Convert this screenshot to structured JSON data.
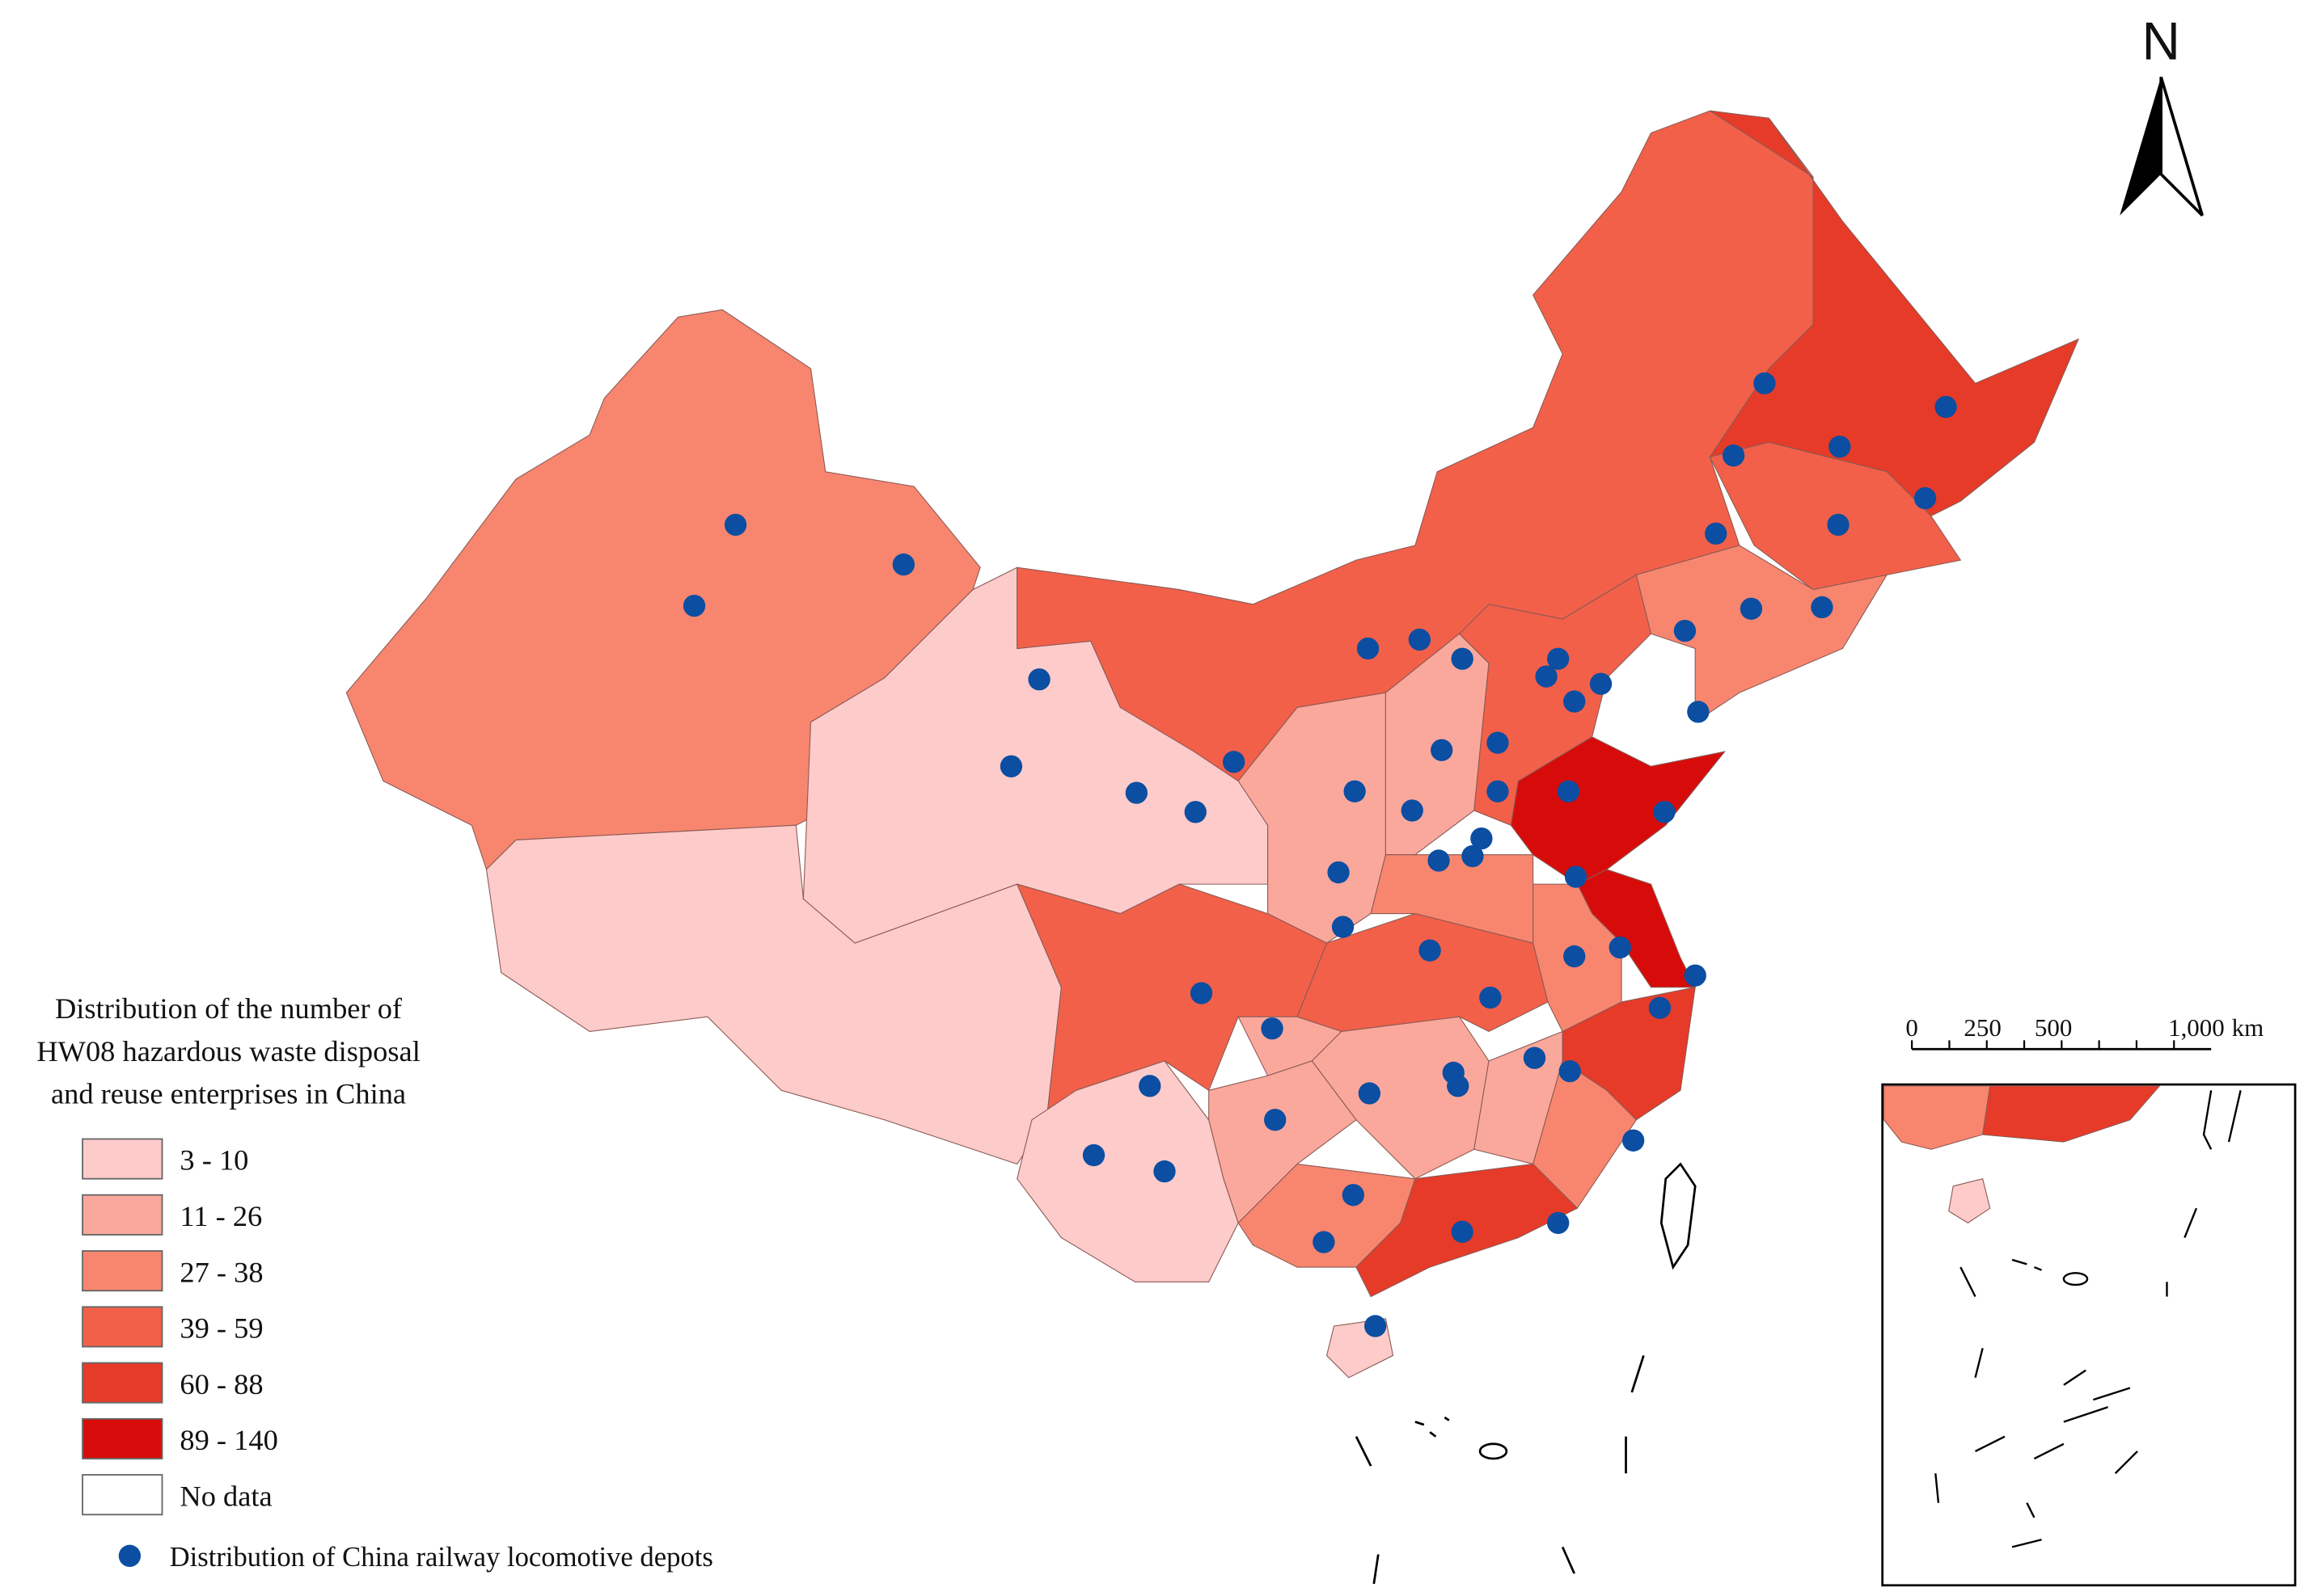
{
  "map": {
    "legend": {
      "title": [
        "Distribution of the number of",
        "HW08 hazardous waste disposal",
        "and reuse enterprises in China"
      ],
      "classes": [
        {
          "label": "3 - 10",
          "color": "#fdcbca"
        },
        {
          "label": "11 - 26",
          "color": "#fba89c"
        },
        {
          "label": "27 - 38",
          "color": "#f8866f"
        },
        {
          "label": "39 - 59",
          "color": "#f36049"
        },
        {
          "label": "60 - 88",
          "color": "#e63b28"
        },
        {
          "label": "89 - 140",
          "color": "#d70c0a"
        }
      ],
      "no_data": "No data"
    },
    "points_label": "Distribution of China railway locomotive depots",
    "point_color": "#0b4ea2",
    "north": "N",
    "scale_bar": {
      "ticks": [
        "0",
        "250",
        "500",
        "1,000"
      ],
      "unit": "km"
    }
  }
}
